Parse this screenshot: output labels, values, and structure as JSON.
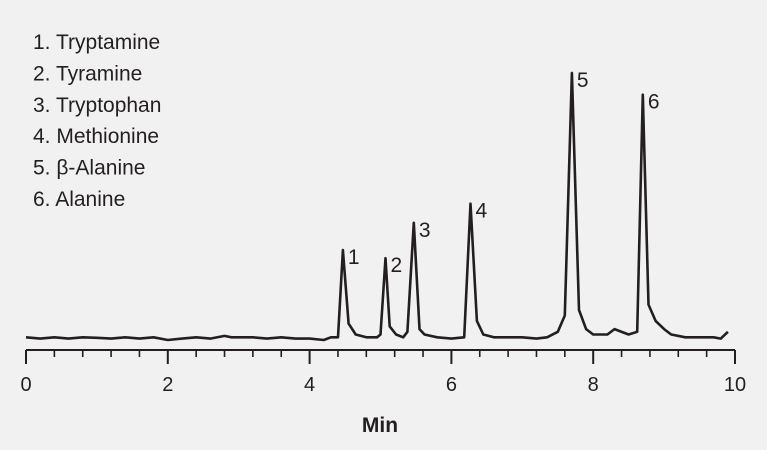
{
  "chart_data": {
    "type": "line",
    "xlabel": "Min",
    "ylabel": "",
    "xlim": [
      0,
      10
    ],
    "xticks": [
      "0",
      "2",
      "4",
      "6",
      "8",
      "10"
    ],
    "minor_xticks_per_interval": 4,
    "grid": false,
    "legend_position": "top-left",
    "legend": [
      "1. Tryptamine",
      "2. Tyramine",
      "3. Tryptophan",
      "4. Methionine",
      "5. β-Alanine",
      "6. Alanine"
    ],
    "peak_labels": [
      {
        "label": "1",
        "x": 4.47,
        "y": 0.33
      },
      {
        "label": "2",
        "x": 5.07,
        "y": 0.3
      },
      {
        "label": "3",
        "x": 5.47,
        "y": 0.43
      },
      {
        "label": "4",
        "x": 6.27,
        "y": 0.5
      },
      {
        "label": "5",
        "x": 7.7,
        "y": 0.98
      },
      {
        "label": "6",
        "x": 8.7,
        "y": 0.9
      }
    ],
    "ylim": [
      0,
      1.02
    ],
    "series": [
      {
        "x": [
          0.0,
          0.2,
          0.4,
          0.6,
          0.8,
          1.0,
          1.2,
          1.4,
          1.6,
          1.8,
          2.0,
          2.2,
          2.4,
          2.6,
          2.8,
          2.9,
          3.0,
          3.2,
          3.4,
          3.6,
          3.8,
          4.0,
          4.2,
          4.3,
          4.4,
          4.47,
          4.55,
          4.65,
          4.8,
          4.95,
          5.0,
          5.07,
          5.13,
          5.22,
          5.32,
          5.38,
          5.47,
          5.55,
          5.62,
          5.8,
          6.0,
          6.18,
          6.27,
          6.36,
          6.45,
          6.6,
          6.8,
          7.0,
          7.2,
          7.35,
          7.5,
          7.6,
          7.7,
          7.8,
          7.9,
          8.0,
          8.2,
          8.3,
          8.5,
          8.62,
          8.7,
          8.78,
          8.88,
          9.0,
          9.1,
          9.3,
          9.5,
          9.7,
          9.8,
          9.9
        ],
        "y": [
          0.01,
          0.005,
          0.01,
          0.005,
          0.01,
          0.008,
          0.005,
          0.01,
          0.005,
          0.01,
          0.0,
          0.005,
          0.01,
          0.005,
          0.015,
          0.01,
          0.01,
          0.01,
          0.005,
          0.01,
          0.005,
          0.005,
          0.0,
          0.01,
          0.01,
          0.33,
          0.06,
          0.02,
          0.01,
          0.01,
          0.02,
          0.3,
          0.05,
          0.02,
          0.01,
          0.03,
          0.43,
          0.04,
          0.02,
          0.01,
          0.005,
          0.01,
          0.5,
          0.07,
          0.02,
          0.01,
          0.01,
          0.01,
          0.005,
          0.01,
          0.03,
          0.09,
          0.98,
          0.11,
          0.04,
          0.02,
          0.02,
          0.04,
          0.02,
          0.03,
          0.9,
          0.13,
          0.07,
          0.04,
          0.02,
          0.01,
          0.01,
          0.01,
          0.005,
          0.03
        ]
      }
    ]
  }
}
